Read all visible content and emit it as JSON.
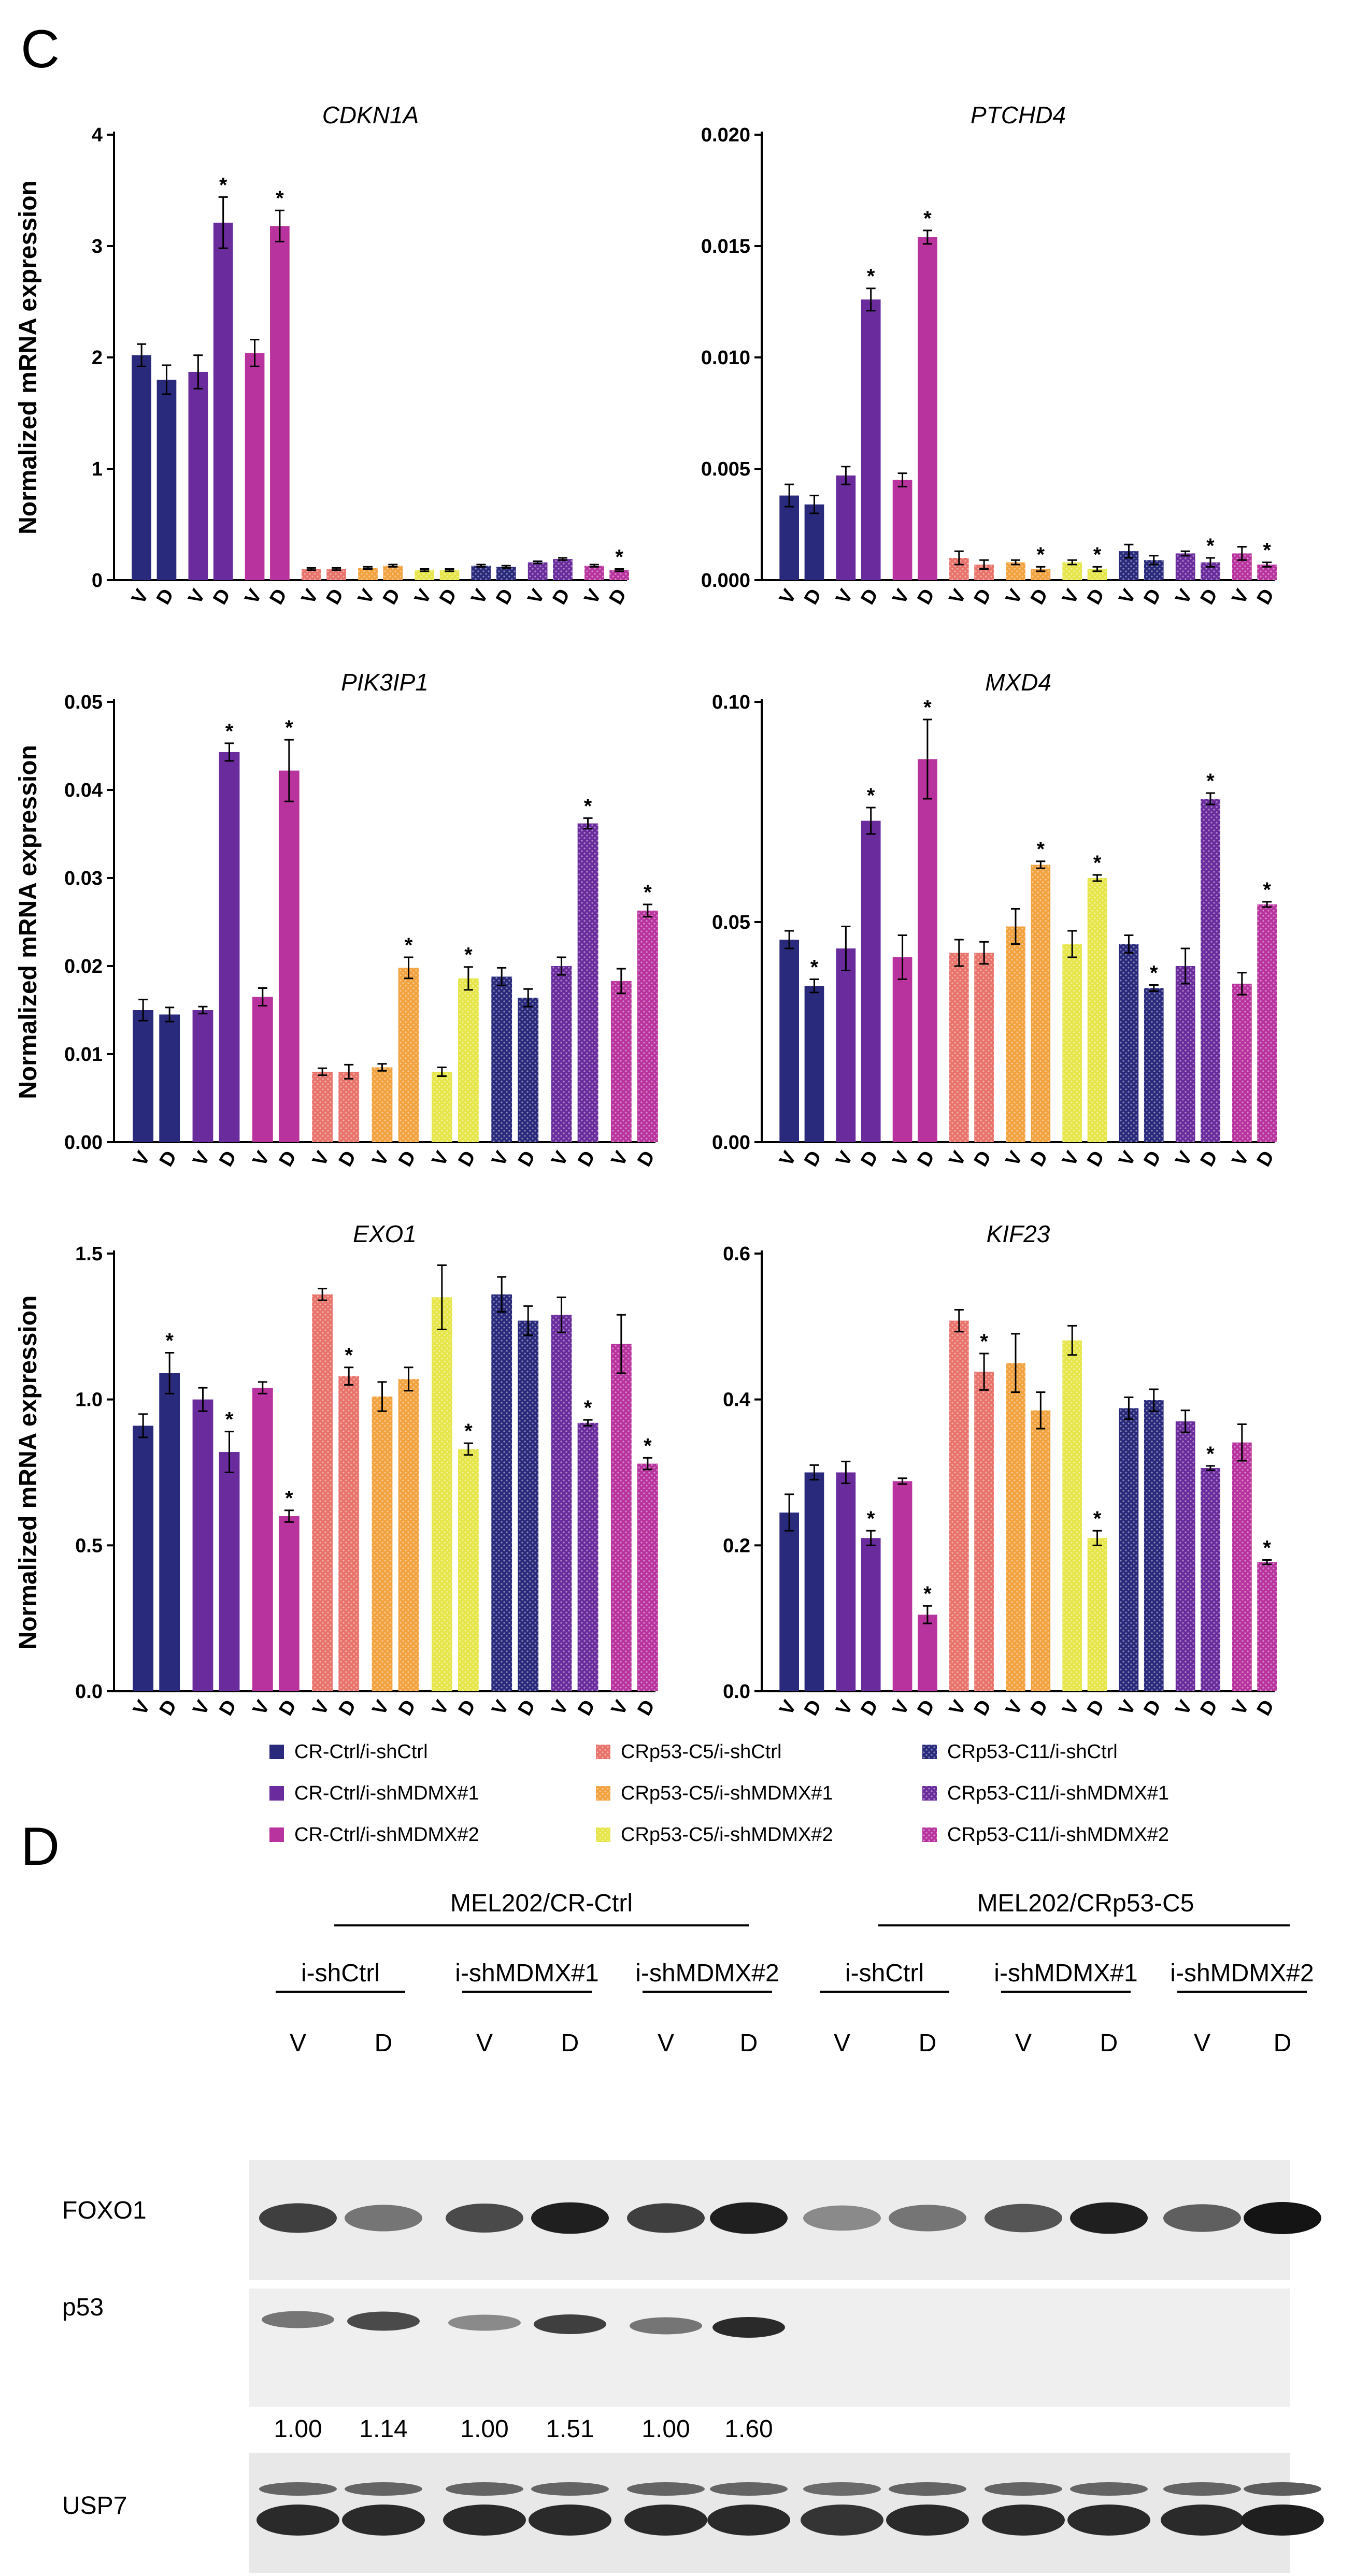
{
  "panel_c_label": "C",
  "panel_d_label": "D",
  "palette": [
    "#2a2a7c",
    "#6a2c9c",
    "#b8339e",
    "#e8736a",
    "#f2a23e",
    "#e6e64a",
    "#2a2a7c",
    "#6a2c9c",
    "#b8339e"
  ],
  "conditions": [
    "V",
    "D"
  ],
  "legend": [
    "CR-Ctrl/i-shCtrl",
    "CR-Ctrl/i-shMDMX#1",
    "CR-Ctrl/i-shMDMX#2",
    "CRp53-C5/i-shCtrl",
    "CRp53-C5/i-shMDMX#1",
    "CRp53-C5/i-shMDMX#2",
    "CRp53-C11/i-shCtrl",
    "CRp53-C11/i-shMDMX#1",
    "CRp53-C11/i-shMDMX#2"
  ],
  "chart_data": [
    {
      "type": "bar",
      "title": "CDKN1A",
      "ylabel": "Normalized mRNA expression",
      "ylim": [
        0,
        4
      ],
      "yticks": [
        "0",
        "1",
        "2",
        "3",
        "4"
      ],
      "values": [
        2.02,
        1.8,
        1.87,
        3.21,
        2.04,
        3.18,
        0.1,
        0.1,
        0.11,
        0.13,
        0.09,
        0.09,
        0.13,
        0.12,
        0.16,
        0.19,
        0.13,
        0.09
      ],
      "errors": [
        0.1,
        0.13,
        0.15,
        0.23,
        0.12,
        0.14,
        0.01,
        0.01,
        0.01,
        0.01,
        0.01,
        0.01,
        0.01,
        0.01,
        0.01,
        0.01,
        0.01,
        0.01
      ],
      "stars": [
        3,
        5,
        17
      ]
    },
    {
      "type": "bar",
      "title": "PTCHD4",
      "ylabel": "",
      "ylim": [
        0,
        0.02
      ],
      "yticks": [
        "0.000",
        "0.005",
        "0.010",
        "0.015",
        "0.020"
      ],
      "values": [
        0.0038,
        0.0034,
        0.0047,
        0.0126,
        0.0045,
        0.0154,
        0.001,
        0.0007,
        0.0008,
        0.0005,
        0.0008,
        0.0005,
        0.0013,
        0.0009,
        0.0012,
        0.0008,
        0.0012,
        0.0007
      ],
      "errors": [
        0.0005,
        0.0004,
        0.0004,
        0.0005,
        0.0003,
        0.0003,
        0.0003,
        0.0002,
        0.0001,
        0.0001,
        0.0001,
        0.0001,
        0.0003,
        0.0002,
        0.0001,
        0.0002,
        0.0003,
        0.0001
      ],
      "stars": [
        3,
        5,
        9,
        11,
        15,
        17
      ]
    },
    {
      "type": "bar",
      "title": "PIK3IP1",
      "ylabel": "Normalized mRNA expression",
      "ylim": [
        0,
        0.05
      ],
      "yticks": [
        "0.00",
        "0.01",
        "0.02",
        "0.03",
        "0.04",
        "0.05"
      ],
      "values": [
        0.015,
        0.0145,
        0.015,
        0.0443,
        0.0165,
        0.0422,
        0.008,
        0.008,
        0.0085,
        0.0198,
        0.008,
        0.0186,
        0.0188,
        0.0164,
        0.02,
        0.0362,
        0.0183,
        0.0263
      ],
      "errors": [
        0.0012,
        0.0008,
        0.0004,
        0.001,
        0.001,
        0.0035,
        0.0004,
        0.0008,
        0.0004,
        0.0012,
        0.0005,
        0.0013,
        0.001,
        0.001,
        0.001,
        0.0006,
        0.0014,
        0.0007
      ],
      "stars": [
        3,
        5,
        9,
        11,
        15,
        17
      ]
    },
    {
      "type": "bar",
      "title": "MXD4",
      "ylabel": "",
      "ylim": [
        0,
        0.1
      ],
      "yticks": [
        "0.00",
        "0.05",
        "0.10"
      ],
      "values": [
        0.046,
        0.0355,
        0.044,
        0.073,
        0.042,
        0.087,
        0.043,
        0.043,
        0.049,
        0.063,
        0.045,
        0.06,
        0.045,
        0.035,
        0.04,
        0.078,
        0.036,
        0.054
      ],
      "errors": [
        0.002,
        0.0015,
        0.005,
        0.003,
        0.005,
        0.009,
        0.003,
        0.0025,
        0.004,
        0.0008,
        0.003,
        0.0007,
        0.002,
        0.0007,
        0.004,
        0.0013,
        0.0025,
        0.0006
      ],
      "stars": [
        1,
        3,
        5,
        9,
        11,
        13,
        15,
        17
      ]
    },
    {
      "type": "bar",
      "title": "EXO1",
      "ylabel": "Normalized mRNA expression",
      "ylim": [
        0,
        1.5
      ],
      "yticks": [
        "0.0",
        "0.5",
        "1.0",
        "1.5"
      ],
      "values": [
        0.91,
        1.09,
        1.0,
        0.82,
        1.04,
        0.6,
        1.36,
        1.08,
        1.01,
        1.07,
        1.35,
        0.83,
        1.36,
        1.27,
        1.29,
        0.92,
        1.19,
        0.78
      ],
      "errors": [
        0.04,
        0.07,
        0.04,
        0.07,
        0.02,
        0.02,
        0.02,
        0.03,
        0.05,
        0.04,
        0.11,
        0.02,
        0.06,
        0.05,
        0.06,
        0.01,
        0.1,
        0.02
      ],
      "stars": [
        1,
        3,
        5,
        7,
        11,
        15,
        17
      ]
    },
    {
      "type": "bar",
      "title": "KIF23",
      "ylabel": "",
      "ylim": [
        0,
        0.6
      ],
      "yticks": [
        "0.0",
        "0.2",
        "0.4",
        "0.6"
      ],
      "values": [
        0.245,
        0.3,
        0.3,
        0.21,
        0.288,
        0.105,
        0.508,
        0.438,
        0.45,
        0.385,
        0.481,
        0.21,
        0.388,
        0.399,
        0.37,
        0.306,
        0.341,
        0.177
      ],
      "errors": [
        0.025,
        0.01,
        0.015,
        0.01,
        0.004,
        0.012,
        0.015,
        0.025,
        0.04,
        0.025,
        0.02,
        0.01,
        0.015,
        0.015,
        0.015,
        0.003,
        0.025,
        0.003
      ],
      "stars": [
        3,
        5,
        7,
        11,
        15,
        17
      ]
    }
  ],
  "blot": {
    "group_labels": [
      "MEL202/CR-Ctrl",
      "MEL202/CRp53-C5"
    ],
    "sub_labels": [
      "i-shCtrl",
      "i-shMDMX#1",
      "i-shMDMX#2",
      "i-shCtrl",
      "i-shMDMX#1",
      "i-shMDMX#2"
    ],
    "lane_labels": [
      "V",
      "D",
      "V",
      "D",
      "V",
      "D",
      "V",
      "D",
      "V",
      "D",
      "V",
      "D"
    ],
    "rows": [
      "FOXO1",
      "p53",
      "USP7"
    ],
    "quant": [
      "1.00",
      "1.14",
      "1.00",
      "1.51",
      "1.00",
      "1.60"
    ],
    "foxo1_intensity": [
      0.8,
      0.55,
      0.75,
      0.95,
      0.8,
      0.95,
      0.45,
      0.55,
      0.7,
      0.95,
      0.65,
      1.0
    ],
    "p53_intensity": [
      0.55,
      0.75,
      0.45,
      0.8,
      0.55,
      0.9,
      0,
      0,
      0,
      0,
      0,
      0
    ],
    "usp7_intensity": [
      0.9,
      0.9,
      0.9,
      0.9,
      0.9,
      0.9,
      0.85,
      0.9,
      0.9,
      0.9,
      0.9,
      0.95
    ]
  }
}
